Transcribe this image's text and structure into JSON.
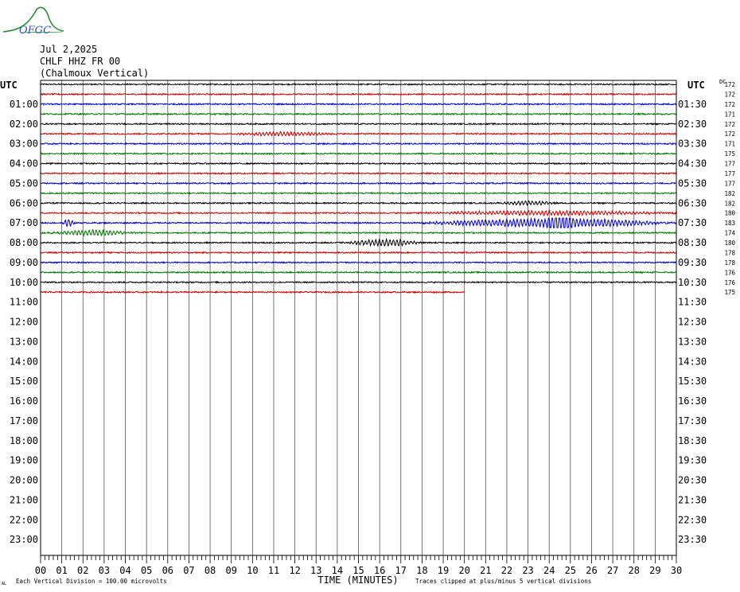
{
  "header": {
    "logo_text": "OFGC",
    "date": "Jul 2,2025",
    "station": "CHLF HHZ FR 00",
    "location": "(Chalmoux Vertical)"
  },
  "labels": {
    "utc_left": "UTC",
    "utc_right": "UTC",
    "dc": "DC",
    "xlabel": "TIME (MINUTES)",
    "footer_left": "Each Vertical Division =  100.00 microvolts",
    "footer_right": "Traces clipped at plus/minus 5 vertical divisions",
    "corner_mark": "AL"
  },
  "colors": {
    "trace_cycle": [
      "#000000",
      "#cc0000",
      "#0000cc",
      "#007700"
    ],
    "grid": "#555555"
  },
  "chart_data": {
    "type": "line",
    "title": "CHLF HHZ FR 00 (Chalmoux Vertical)",
    "xlabel": "TIME (MINUTES)",
    "xlim": [
      0,
      30
    ],
    "x_ticks": [
      "00",
      "01",
      "02",
      "03",
      "04",
      "05",
      "06",
      "07",
      "08",
      "09",
      "10",
      "11",
      "12",
      "13",
      "14",
      "15",
      "16",
      "17",
      "18",
      "19",
      "20",
      "21",
      "22",
      "23",
      "24",
      "25",
      "26",
      "27",
      "28",
      "29",
      "30"
    ],
    "left_labels": [
      "",
      "01:00",
      "02:00",
      "03:00",
      "04:00",
      "05:00",
      "06:00",
      "07:00",
      "08:00",
      "09:00",
      "10:00",
      "11:00",
      "12:00",
      "13:00",
      "14:00",
      "15:00",
      "16:00",
      "17:00",
      "18:00",
      "19:00",
      "20:00",
      "21:00",
      "22:00",
      "23:00"
    ],
    "right_labels": [
      "",
      "01:30",
      "02:30",
      "03:30",
      "04:30",
      "05:30",
      "06:30",
      "07:30",
      "08:30",
      "09:30",
      "10:30",
      "11:30",
      "12:30",
      "13:30",
      "14:30",
      "15:30",
      "16:30",
      "17:30",
      "18:30",
      "19:30",
      "20:30",
      "21:30",
      "22:30",
      "23:30"
    ],
    "dc_offsets": [
      172,
      172,
      172,
      171,
      172,
      172,
      171,
      175,
      177,
      177,
      177,
      182,
      182,
      180,
      183,
      174,
      180,
      178,
      178,
      176,
      176,
      175
    ],
    "traces_recorded": 22,
    "last_trace_end_minute": 20,
    "events": [
      {
        "trace": 5,
        "start_min": 9.0,
        "end_min": 14.0,
        "amplitude": 2.2
      },
      {
        "trace": 12,
        "start_min": 21.5,
        "end_min": 24.5,
        "amplitude": 2.0
      },
      {
        "trace": 13,
        "start_min": 17.8,
        "end_min": 30.0,
        "amplitude": 2.5
      },
      {
        "trace": 14,
        "start_min": 18.0,
        "end_min": 30.0,
        "amplitude": 5.0
      },
      {
        "trace": 14,
        "start_min": 23.8,
        "end_min": 25.2,
        "amplitude": 10.0
      },
      {
        "trace": 15,
        "start_min": 0.5,
        "end_min": 4.5,
        "amplitude": 3.0
      },
      {
        "trace": 16,
        "start_min": 14.5,
        "end_min": 18.0,
        "amplitude": 4.0
      },
      {
        "trace": 14,
        "start_min": 1.0,
        "end_min": 1.6,
        "amplitude": 4.0
      }
    ]
  }
}
